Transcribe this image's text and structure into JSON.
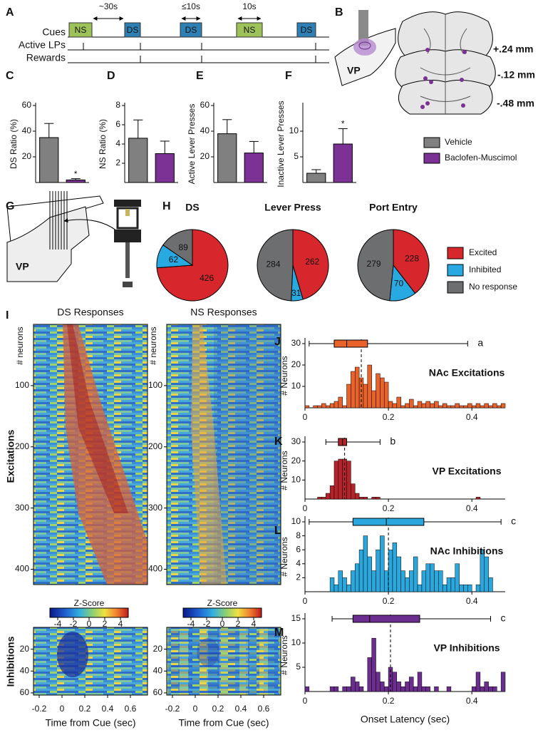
{
  "panel_letters": [
    "A",
    "B",
    "C",
    "D",
    "E",
    "F",
    "G",
    "H",
    "I",
    "J",
    "K",
    "L",
    "M"
  ],
  "cue_diagram": {
    "row_labels": [
      "Cues",
      "Active LPs",
      "Rewards"
    ],
    "cues": [
      "NS",
      "DS",
      "DS",
      "NS",
      "DS"
    ],
    "intervals": [
      "~30s",
      "≤10s",
      "10s"
    ]
  },
  "histology": {
    "region": "VP",
    "levels": [
      "+.24 mm",
      "-.12 mm",
      "-.48 mm"
    ]
  },
  "recording_diagram": {
    "region": "VP"
  },
  "bar_legend": [
    {
      "name": "Vehicle",
      "color": "#808080"
    },
    {
      "name": "Baclofen-Muscimol",
      "color": "#7b3294"
    }
  ],
  "pie_legend": [
    {
      "name": "Excited",
      "color": "#d7262c"
    },
    {
      "name": "Inhibited",
      "color": "#29a9e1"
    },
    {
      "name": "No response",
      "color": "#6d6e70"
    }
  ],
  "heatmap_row_labels": [
    "Excitations",
    "Inhibitions"
  ],
  "chart_data": [
    {
      "type": "bar",
      "ylabel": "DS Ratio (%)",
      "values": [
        35,
        2
      ],
      "errors": [
        11,
        1
      ],
      "annotations": [
        null,
        "*"
      ],
      "ylim": [
        0,
        60
      ],
      "yticks": [
        20,
        40,
        60
      ]
    },
    {
      "type": "bar",
      "ylabel": "NS Ratio (%)",
      "values": [
        4.6,
        3.0
      ],
      "errors": [
        1.9,
        1.3
      ],
      "annotations": [
        null,
        null
      ],
      "ylim": [
        0,
        8
      ],
      "yticks": [
        2,
        4,
        6,
        8
      ]
    },
    {
      "type": "bar",
      "ylabel": "Active Lever Presses",
      "values": [
        38,
        23
      ],
      "errors": [
        11,
        9
      ],
      "annotations": [
        null,
        null
      ],
      "ylim": [
        0,
        60
      ],
      "yticks": [
        20,
        40,
        60
      ]
    },
    {
      "type": "bar",
      "ylabel": "Inactive Lever Presses",
      "values": [
        1.8,
        7.5
      ],
      "errors": [
        0.7,
        3
      ],
      "annotations": [
        null,
        "*"
      ],
      "ylim": [
        0,
        15
      ],
      "yticks": [
        5,
        10
      ]
    },
    {
      "type": "pie",
      "title": "DS",
      "values": [
        426,
        62,
        89
      ]
    },
    {
      "type": "pie",
      "title": "Lever Press",
      "values": [
        262,
        31,
        284
      ]
    },
    {
      "type": "pie",
      "title": "Port Entry",
      "values": [
        228,
        70,
        279
      ]
    },
    {
      "type": "heatmap",
      "title": "DS Responses",
      "ylabel": "# neurons",
      "ylim": [
        0,
        425
      ],
      "yticks": [
        100,
        200,
        300,
        400
      ]
    },
    {
      "type": "heatmap",
      "xlabel": "Time from Cue (sec)",
      "xlim": [
        -0.25,
        0.75
      ],
      "xticks": [
        -0.2,
        0,
        0.2,
        0.4,
        0.6
      ],
      "ylim": [
        0,
        62
      ],
      "yticks": [
        20,
        40,
        60
      ]
    },
    {
      "type": "heatmap",
      "title": "NS Responses",
      "ylabel": "# neurons",
      "ylim": [
        0,
        425
      ],
      "yticks": [
        100,
        200,
        300,
        400
      ]
    },
    {
      "type": "heatmap",
      "xlabel": "Time from Cue (sec)",
      "xlim": [
        -0.25,
        0.75
      ],
      "xticks": [
        -0.2,
        0,
        0.2,
        0.4,
        0.6
      ],
      "ylim": [
        0,
        62
      ],
      "yticks": [
        20,
        40,
        60
      ]
    },
    {
      "type": "colorbar",
      "label": "Z-Score",
      "xlim": [
        -5,
        5
      ],
      "xticks": [
        -4,
        -2,
        0,
        2,
        4
      ]
    },
    {
      "type": "colorbar",
      "label": "Z-Score",
      "xlim": [
        -5,
        5
      ],
      "xticks": [
        -4,
        -2,
        0,
        2,
        4
      ]
    },
    {
      "type": "histogram",
      "title": "NAc Excitations",
      "ylabel": "# Neurons",
      "color": "#e8622a",
      "bins": [
        0,
        0.01,
        0.02,
        0.03,
        0.04,
        0.05,
        0.06,
        0.07,
        0.08,
        0.09,
        0.1,
        0.11,
        0.12,
        0.13,
        0.14,
        0.15,
        0.16,
        0.17,
        0.18,
        0.19,
        0.2,
        0.21,
        0.22,
        0.23,
        0.24,
        0.25,
        0.26,
        0.27,
        0.28,
        0.29,
        0.3,
        0.31,
        0.32,
        0.33,
        0.34,
        0.35,
        0.36,
        0.37,
        0.38,
        0.39,
        0.4,
        0.41,
        0.42,
        0.43,
        0.44,
        0.45,
        0.46,
        0.47,
        0.48
      ],
      "values": [
        1,
        0,
        1,
        1,
        2,
        1,
        2,
        3,
        5,
        1,
        11,
        17,
        19,
        14,
        11,
        20,
        8,
        16,
        14,
        12,
        3,
        2,
        5,
        1,
        2,
        4,
        1,
        3,
        2,
        3,
        2,
        3,
        1,
        2,
        1,
        1,
        2,
        1,
        1,
        2,
        1,
        2,
        1,
        2,
        1,
        2,
        1,
        2
      ],
      "box": {
        "low": 0.01,
        "q1": 0.07,
        "median": 0.1,
        "q3": 0.15,
        "high": 0.39
      },
      "mean": 0.135,
      "box_label": "a",
      "xlim": [
        0,
        0.48
      ],
      "xticks": [
        0,
        0.2,
        0.4
      ],
      "ylim": [
        0,
        30
      ],
      "yticks": [
        10,
        20,
        30
      ]
    },
    {
      "type": "histogram",
      "title": "VP Excitations",
      "ylabel": "# Neurons",
      "color": "#b5232a",
      "bins": [
        0,
        0.01,
        0.02,
        0.03,
        0.04,
        0.05,
        0.06,
        0.07,
        0.08,
        0.09,
        0.1,
        0.11,
        0.12,
        0.13,
        0.14,
        0.15,
        0.16,
        0.17,
        0.18,
        0.19,
        0.2,
        0.21,
        0.22,
        0.23,
        0.24,
        0.25,
        0.26,
        0.27,
        0.28,
        0.29,
        0.3,
        0.31,
        0.32,
        0.33,
        0.34,
        0.35,
        0.36,
        0.37,
        0.38,
        0.39,
        0.4,
        0.41,
        0.42,
        0.43,
        0.44,
        0.45,
        0.46,
        0.47,
        0.48
      ],
      "values": [
        0,
        0,
        0,
        1,
        1,
        3,
        7,
        20,
        21,
        21,
        20,
        8,
        3,
        1,
        1,
        0,
        1,
        1,
        0,
        0,
        0,
        0,
        0,
        0,
        0,
        0,
        0,
        0,
        0,
        0,
        0,
        0,
        0,
        0,
        0,
        0,
        0,
        0,
        0,
        0,
        0,
        1,
        0,
        0,
        0,
        0,
        0,
        0
      ],
      "box": {
        "low": 0.05,
        "q1": 0.08,
        "median": 0.09,
        "q3": 0.1,
        "high": 0.18
      },
      "mean": 0.095,
      "box_label": "b",
      "xlim": [
        0,
        0.48
      ],
      "xticks": [
        0,
        0.2,
        0.4
      ],
      "ylim": [
        0,
        30
      ],
      "yticks": [
        10,
        20,
        30
      ]
    },
    {
      "type": "histogram",
      "title": "NAc Inhibitions",
      "ylabel": "# Neurons",
      "color": "#2aa7dc",
      "bins": [
        0,
        0.01,
        0.02,
        0.03,
        0.04,
        0.05,
        0.06,
        0.07,
        0.08,
        0.09,
        0.1,
        0.11,
        0.12,
        0.13,
        0.14,
        0.15,
        0.16,
        0.17,
        0.18,
        0.19,
        0.2,
        0.21,
        0.22,
        0.23,
        0.24,
        0.25,
        0.26,
        0.27,
        0.28,
        0.29,
        0.3,
        0.31,
        0.32,
        0.33,
        0.34,
        0.35,
        0.36,
        0.37,
        0.38,
        0.39,
        0.4,
        0.41,
        0.42,
        0.43,
        0.44,
        0.45,
        0.46,
        0.47,
        0.48
      ],
      "values": [
        0,
        0,
        0,
        0,
        0,
        0,
        2,
        1,
        3,
        2,
        1,
        3,
        4,
        6,
        8,
        5,
        3,
        6,
        8,
        3,
        6,
        7,
        5,
        3,
        2,
        3,
        5,
        1,
        3,
        4,
        4,
        3,
        3,
        1,
        2,
        2,
        4,
        1,
        1,
        1,
        0,
        1,
        6,
        5,
        2,
        0,
        0,
        0
      ],
      "box": {
        "low": 0.01,
        "q1": 0.115,
        "median": 0.195,
        "q3": 0.285,
        "high": 0.47
      },
      "mean": 0.2,
      "box_label": "c",
      "xlim": [
        0,
        0.48
      ],
      "xticks": [
        0,
        0.2,
        0.4
      ],
      "ylim": [
        0,
        10
      ],
      "yticks": [
        2,
        4,
        6,
        8,
        10
      ]
    },
    {
      "type": "histogram",
      "title": "VP Inhibitions",
      "ylabel": "# Neurons",
      "xlabel": "Onset Latency (sec)",
      "color": "#6b2d8e",
      "bins": [
        0,
        0.01,
        0.02,
        0.03,
        0.04,
        0.05,
        0.06,
        0.07,
        0.08,
        0.09,
        0.1,
        0.11,
        0.12,
        0.13,
        0.14,
        0.15,
        0.16,
        0.17,
        0.18,
        0.19,
        0.2,
        0.21,
        0.22,
        0.23,
        0.24,
        0.25,
        0.26,
        0.27,
        0.28,
        0.29,
        0.3,
        0.31,
        0.32,
        0.33,
        0.34,
        0.35,
        0.36,
        0.37,
        0.38,
        0.39,
        0.4,
        0.41,
        0.42,
        0.43,
        0.44,
        0.45,
        0.46,
        0.47,
        0.48
      ],
      "values": [
        1,
        0,
        0,
        0,
        0,
        0,
        1,
        1,
        0,
        1,
        1,
        3,
        2,
        1,
        0,
        7,
        11,
        4,
        2,
        1,
        5,
        4,
        2,
        1,
        2,
        3,
        1,
        4,
        1,
        1,
        0,
        1,
        0,
        0,
        1,
        0,
        0,
        0,
        0,
        0,
        1,
        4,
        1,
        2,
        1,
        1,
        0,
        4
      ],
      "box": {
        "low": 0.065,
        "q1": 0.115,
        "median": 0.155,
        "q3": 0.275,
        "high": 0.445
      },
      "mean": 0.205,
      "box_label": "c",
      "xlim": [
        0,
        0.48
      ],
      "xticks": [
        0,
        0.2,
        0.4
      ],
      "ylim": [
        0,
        15
      ],
      "yticks": [
        5,
        10,
        15
      ]
    }
  ]
}
